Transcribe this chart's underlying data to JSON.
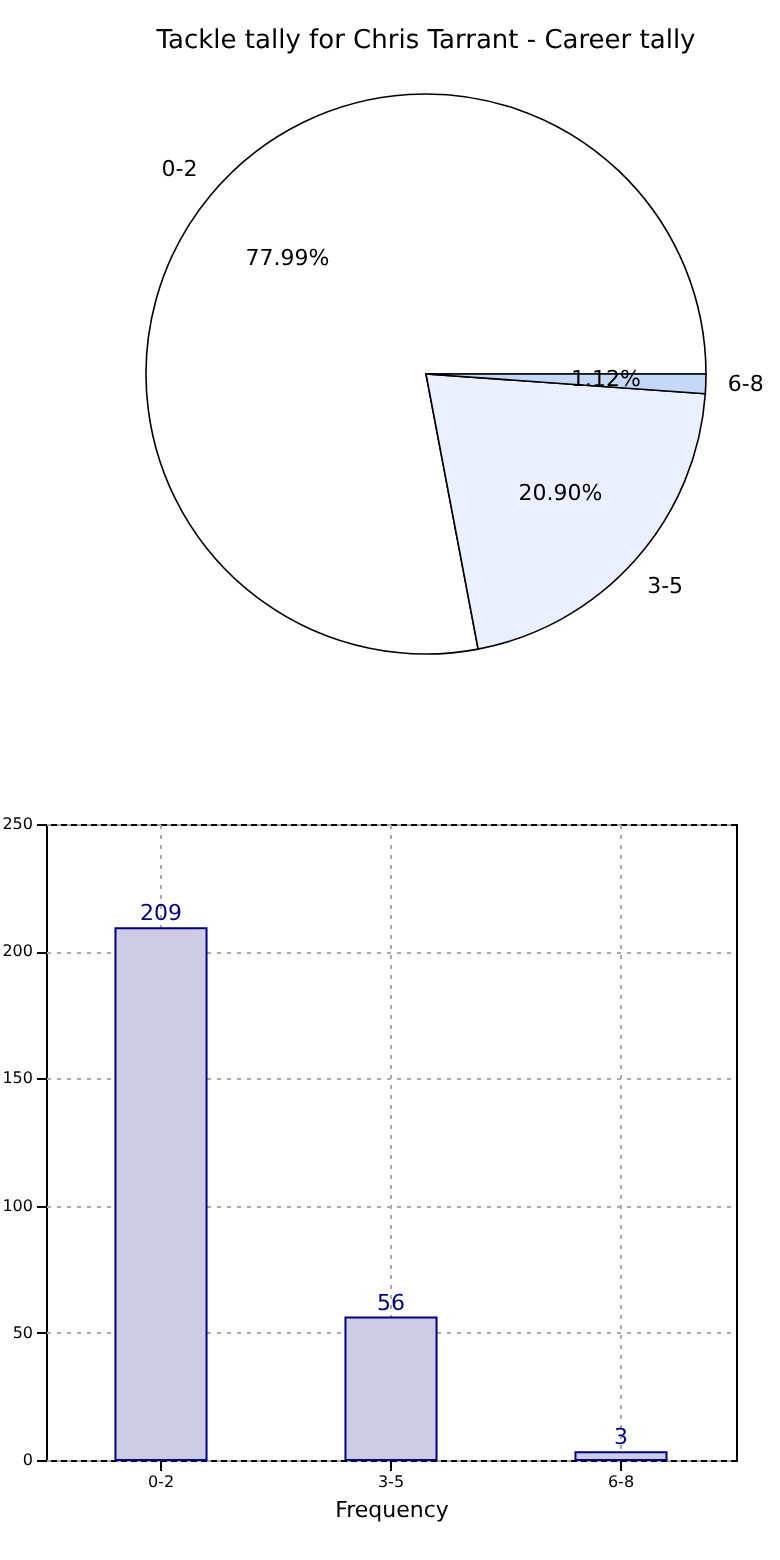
{
  "chart_data": [
    {
      "type": "pie",
      "title": "Tackle tally for Chris Tarrant - Career tally",
      "categories": [
        "0-2",
        "3-5",
        "6-8"
      ],
      "values": [
        77.99,
        20.9,
        1.12
      ],
      "colors": [
        "#ffffff",
        "#ebf0fe",
        "#c6d8f8"
      ],
      "value_labels": [
        "77.99%",
        "20.90%",
        "1.12%"
      ]
    },
    {
      "type": "bar",
      "categories": [
        "0-2",
        "3-5",
        "6-8"
      ],
      "values": [
        209,
        56,
        3
      ],
      "color": "#ccccE4",
      "xlabel": "Frequency",
      "ylim": [
        0,
        250
      ],
      "yticks": [
        0,
        50,
        100,
        150,
        200,
        250
      ],
      "grid": true,
      "data_labels": true
    }
  ]
}
